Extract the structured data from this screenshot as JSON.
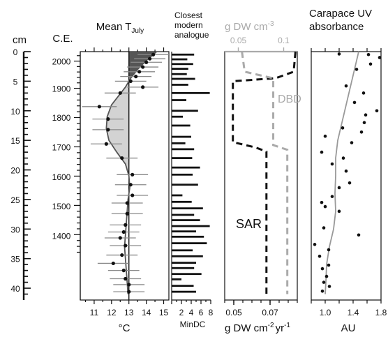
{
  "depth_axis": {
    "unit": "cm",
    "ticks": [
      0,
      5,
      10,
      15,
      20,
      25,
      30,
      35,
      40
    ],
    "range": [
      0,
      42
    ]
  },
  "age_axis": {
    "unit": "C.E.",
    "ticks": [
      2000,
      1900,
      1800,
      1700,
      1600,
      1500,
      1400
    ]
  },
  "chart_data": [
    {
      "type": "scatter",
      "title": "Mean T",
      "title_sub": "July",
      "xlabel": "°C",
      "xticks": [
        11,
        12,
        13,
        14,
        15
      ],
      "xlim": [
        10.2,
        15.3
      ],
      "reference_line": 13,
      "fill_above": "#555555",
      "fill_below": "#d3d3d3",
      "points": [
        {
          "depth": 0.5,
          "t": 14.4,
          "err": 0.9
        },
        {
          "depth": 1.2,
          "t": 14.2,
          "err": 0.9
        },
        {
          "depth": 1.8,
          "t": 14.0,
          "err": 0.9
        },
        {
          "depth": 2.6,
          "t": 13.8,
          "err": 0.9
        },
        {
          "depth": 3.4,
          "t": 13.6,
          "err": 0.9
        },
        {
          "depth": 4.2,
          "t": 13.4,
          "err": 0.9
        },
        {
          "depth": 5.0,
          "t": 13.1,
          "err": 0.9
        },
        {
          "depth": 6.0,
          "t": 13.8,
          "err": 0.9
        },
        {
          "depth": 7.0,
          "t": 12.5,
          "err": 0.9
        },
        {
          "depth": 9.3,
          "t": 11.3,
          "err": 1.0
        },
        {
          "depth": 11.4,
          "t": 11.8,
          "err": 0.9
        },
        {
          "depth": 13.2,
          "t": 11.8,
          "err": 0.9
        },
        {
          "depth": 15.6,
          "t": 11.7,
          "err": 0.9
        },
        {
          "depth": 18.0,
          "t": 12.6,
          "err": 0.9
        },
        {
          "depth": 20.8,
          "t": 13.2,
          "err": 0.9
        },
        {
          "depth": 22.5,
          "t": 13.1,
          "err": 0.9
        },
        {
          "depth": 24.3,
          "t": 13.2,
          "err": 0.9
        },
        {
          "depth": 25.6,
          "t": 12.9,
          "err": 0.9
        },
        {
          "depth": 27.4,
          "t": 12.9,
          "err": 0.9
        },
        {
          "depth": 29.3,
          "t": 12.8,
          "err": 0.9
        },
        {
          "depth": 30.5,
          "t": 12.7,
          "err": 0.9
        },
        {
          "depth": 31.5,
          "t": 12.5,
          "err": 0.9
        },
        {
          "depth": 32.8,
          "t": 12.8,
          "err": 0.9
        },
        {
          "depth": 34.4,
          "t": 12.6,
          "err": 0.9
        },
        {
          "depth": 35.8,
          "t": 12.1,
          "err": 0.9
        },
        {
          "depth": 37.0,
          "t": 12.7,
          "err": 0.9
        },
        {
          "depth": 38.4,
          "t": 12.8,
          "err": 0.9
        },
        {
          "depth": 39.4,
          "t": 13.0,
          "err": 0.9
        },
        {
          "depth": 40.6,
          "t": 13.0,
          "err": 0.9
        }
      ],
      "smooth": [
        {
          "depth": 0,
          "t": 14.6
        },
        {
          "depth": 1.5,
          "t": 14.0
        },
        {
          "depth": 3,
          "t": 13.5
        },
        {
          "depth": 4.5,
          "t": 13.1
        },
        {
          "depth": 6,
          "t": 12.8
        },
        {
          "depth": 7.5,
          "t": 12.4
        },
        {
          "depth": 9,
          "t": 12.0
        },
        {
          "depth": 11,
          "t": 11.75
        },
        {
          "depth": 13,
          "t": 11.7
        },
        {
          "depth": 15,
          "t": 11.85
        },
        {
          "depth": 17,
          "t": 12.3
        },
        {
          "depth": 19,
          "t": 12.8
        },
        {
          "depth": 21,
          "t": 13.0
        },
        {
          "depth": 23,
          "t": 13.05
        },
        {
          "depth": 25,
          "t": 12.95
        },
        {
          "depth": 27,
          "t": 12.9
        },
        {
          "depth": 29,
          "t": 12.85
        },
        {
          "depth": 31,
          "t": 12.8
        },
        {
          "depth": 33,
          "t": 12.75
        },
        {
          "depth": 35,
          "t": 12.8
        },
        {
          "depth": 37,
          "t": 12.85
        },
        {
          "depth": 39,
          "t": 12.9
        },
        {
          "depth": 41,
          "t": 12.95
        }
      ]
    },
    {
      "type": "bar",
      "title_lines": [
        "Closest",
        "modern",
        "analogue"
      ],
      "xlabel": "MinDC",
      "xticks": [
        2,
        4,
        6,
        8
      ],
      "xlim": [
        0,
        8
      ],
      "bars": [
        {
          "depth": 0.5,
          "value": 4.6
        },
        {
          "depth": 1.3,
          "value": 3.2
        },
        {
          "depth": 2.1,
          "value": 4.4
        },
        {
          "depth": 2.9,
          "value": 3.4
        },
        {
          "depth": 3.8,
          "value": 3.1
        },
        {
          "depth": 4.6,
          "value": 4.8
        },
        {
          "depth": 5.6,
          "value": 3.4
        },
        {
          "depth": 7.0,
          "value": 7.8
        },
        {
          "depth": 8.2,
          "value": 3.0
        },
        {
          "depth": 10.0,
          "value": 5.4
        },
        {
          "depth": 11.0,
          "value": 2.3
        },
        {
          "depth": 12.5,
          "value": 3.8
        },
        {
          "depth": 14.4,
          "value": 4.0
        },
        {
          "depth": 15.5,
          "value": 2.8
        },
        {
          "depth": 16.5,
          "value": 4.6
        },
        {
          "depth": 18.0,
          "value": 4.2
        },
        {
          "depth": 19.6,
          "value": 5.8
        },
        {
          "depth": 20.8,
          "value": 4.3
        },
        {
          "depth": 22.5,
          "value": 5.4
        },
        {
          "depth": 24.3,
          "value": 2.2
        },
        {
          "depth": 25.4,
          "value": 4.1
        },
        {
          "depth": 26.5,
          "value": 6.4
        },
        {
          "depth": 27.6,
          "value": 4.6
        },
        {
          "depth": 28.5,
          "value": 5.8
        },
        {
          "depth": 29.5,
          "value": 7.8
        },
        {
          "depth": 30.4,
          "value": 5.0
        },
        {
          "depth": 31.3,
          "value": 6.6
        },
        {
          "depth": 32.4,
          "value": 7.2
        },
        {
          "depth": 33.6,
          "value": 4.3
        },
        {
          "depth": 34.6,
          "value": 6.4
        },
        {
          "depth": 35.7,
          "value": 5.0
        },
        {
          "depth": 36.6,
          "value": 4.6
        },
        {
          "depth": 37.6,
          "value": 6.1
        },
        {
          "depth": 38.5,
          "value": 2.0
        },
        {
          "depth": 39.6,
          "value": 4.5
        },
        {
          "depth": 40.6,
          "value": 5.0
        }
      ]
    },
    {
      "type": "line",
      "top_axis": {
        "label": "g DW cm",
        "label_sup": "-3",
        "ticks": [
          "0.05",
          "0.1"
        ],
        "tick_values": [
          0.05,
          0.1
        ],
        "lim": [
          0.035,
          0.115
        ],
        "color": "#aaaaaa"
      },
      "bottom_axis": {
        "label": "g DW cm",
        "label_sup": "-2",
        "label_end": "yr",
        "label_sup2": "-1",
        "ticks": [
          "0.05",
          "0.07"
        ],
        "tick_values": [
          0.05,
          0.07
        ],
        "lim": [
          0.045,
          0.085
        ]
      },
      "series": [
        {
          "name": "SAR",
          "color": "#111111",
          "axis": "bottom",
          "points": [
            {
              "x": 0.084,
              "depth": 0
            },
            {
              "x": 0.083,
              "depth": 3.4
            },
            {
              "x": 0.073,
              "depth": 4.5
            },
            {
              "x": 0.0495,
              "depth": 5.0
            },
            {
              "x": 0.0495,
              "depth": 15.3
            },
            {
              "x": 0.062,
              "depth": 16.2
            },
            {
              "x": 0.068,
              "depth": 16.9
            },
            {
              "x": 0.068,
              "depth": 41
            }
          ]
        },
        {
          "name": "DBD",
          "color": "#aaaaaa",
          "axis": "top",
          "points": [
            {
              "x": 0.054,
              "depth": 0
            },
            {
              "x": 0.057,
              "depth": 3.4
            },
            {
              "x": 0.0885,
              "depth": 4.5
            },
            {
              "x": 0.0885,
              "depth": 15.8
            },
            {
              "x": 0.104,
              "depth": 16.6
            },
            {
              "x": 0.104,
              "depth": 41
            }
          ]
        }
      ]
    },
    {
      "type": "scatter",
      "title_lines": [
        "Carapace UV",
        "absorbance"
      ],
      "xlabel": "AU",
      "xticks": [
        "1.0",
        "1.4",
        "1.8"
      ],
      "tick_values": [
        1.0,
        1.4,
        1.8
      ],
      "xlim": [
        0.8,
        1.8
      ],
      "points": [
        {
          "depth": 0.4,
          "au": 1.2
        },
        {
          "depth": 0.5,
          "au": 1.62
        },
        {
          "depth": 1.0,
          "au": 1.78
        },
        {
          "depth": 2.1,
          "au": 1.65
        },
        {
          "depth": 3.0,
          "au": 1.45
        },
        {
          "depth": 5.8,
          "au": 1.3
        },
        {
          "depth": 7.0,
          "au": 1.55
        },
        {
          "depth": 8.6,
          "au": 1.42
        },
        {
          "depth": 10.0,
          "au": 1.74
        },
        {
          "depth": 10.7,
          "au": 1.58
        },
        {
          "depth": 12.0,
          "au": 1.56
        },
        {
          "depth": 12.9,
          "au": 1.25
        },
        {
          "depth": 13.6,
          "au": 1.52
        },
        {
          "depth": 14.3,
          "au": 1.0
        },
        {
          "depth": 15.4,
          "au": 1.38
        },
        {
          "depth": 17.0,
          "au": 0.95
        },
        {
          "depth": 18.0,
          "au": 1.26
        },
        {
          "depth": 19.0,
          "au": 1.1
        },
        {
          "depth": 20.2,
          "au": 1.3
        },
        {
          "depth": 22.2,
          "au": 1.35
        },
        {
          "depth": 23.0,
          "au": 1.2
        },
        {
          "depth": 24.5,
          "au": 1.1
        },
        {
          "depth": 25.5,
          "au": 0.95
        },
        {
          "depth": 26.2,
          "au": 1.0
        },
        {
          "depth": 27.0,
          "au": 1.2
        },
        {
          "depth": 29.8,
          "au": 0.98
        },
        {
          "depth": 31.0,
          "au": 1.48
        },
        {
          "depth": 32.6,
          "au": 0.85
        },
        {
          "depth": 33.5,
          "au": 1.05
        },
        {
          "depth": 34.6,
          "au": 0.92
        },
        {
          "depth": 36.1,
          "au": 1.05
        },
        {
          "depth": 36.7,
          "au": 0.96
        },
        {
          "depth": 38.0,
          "au": 1.02
        },
        {
          "depth": 39.0,
          "au": 0.98
        },
        {
          "depth": 39.7,
          "au": 1.06
        },
        {
          "depth": 40.5,
          "au": 0.96
        }
      ],
      "smooth": [
        {
          "depth": 0,
          "au": 1.48
        },
        {
          "depth": 3,
          "au": 1.42
        },
        {
          "depth": 6,
          "au": 1.36
        },
        {
          "depth": 9,
          "au": 1.3
        },
        {
          "depth": 12,
          "au": 1.24
        },
        {
          "depth": 15,
          "au": 1.18
        },
        {
          "depth": 18,
          "au": 1.15
        },
        {
          "depth": 21,
          "au": 1.15
        },
        {
          "depth": 24,
          "au": 1.14
        },
        {
          "depth": 27,
          "au": 1.15
        },
        {
          "depth": 30,
          "au": 1.12
        },
        {
          "depth": 33,
          "au": 1.06
        },
        {
          "depth": 36,
          "au": 1.02
        },
        {
          "depth": 39,
          "au": 1.01
        },
        {
          "depth": 41,
          "au": 1.0
        }
      ]
    }
  ]
}
